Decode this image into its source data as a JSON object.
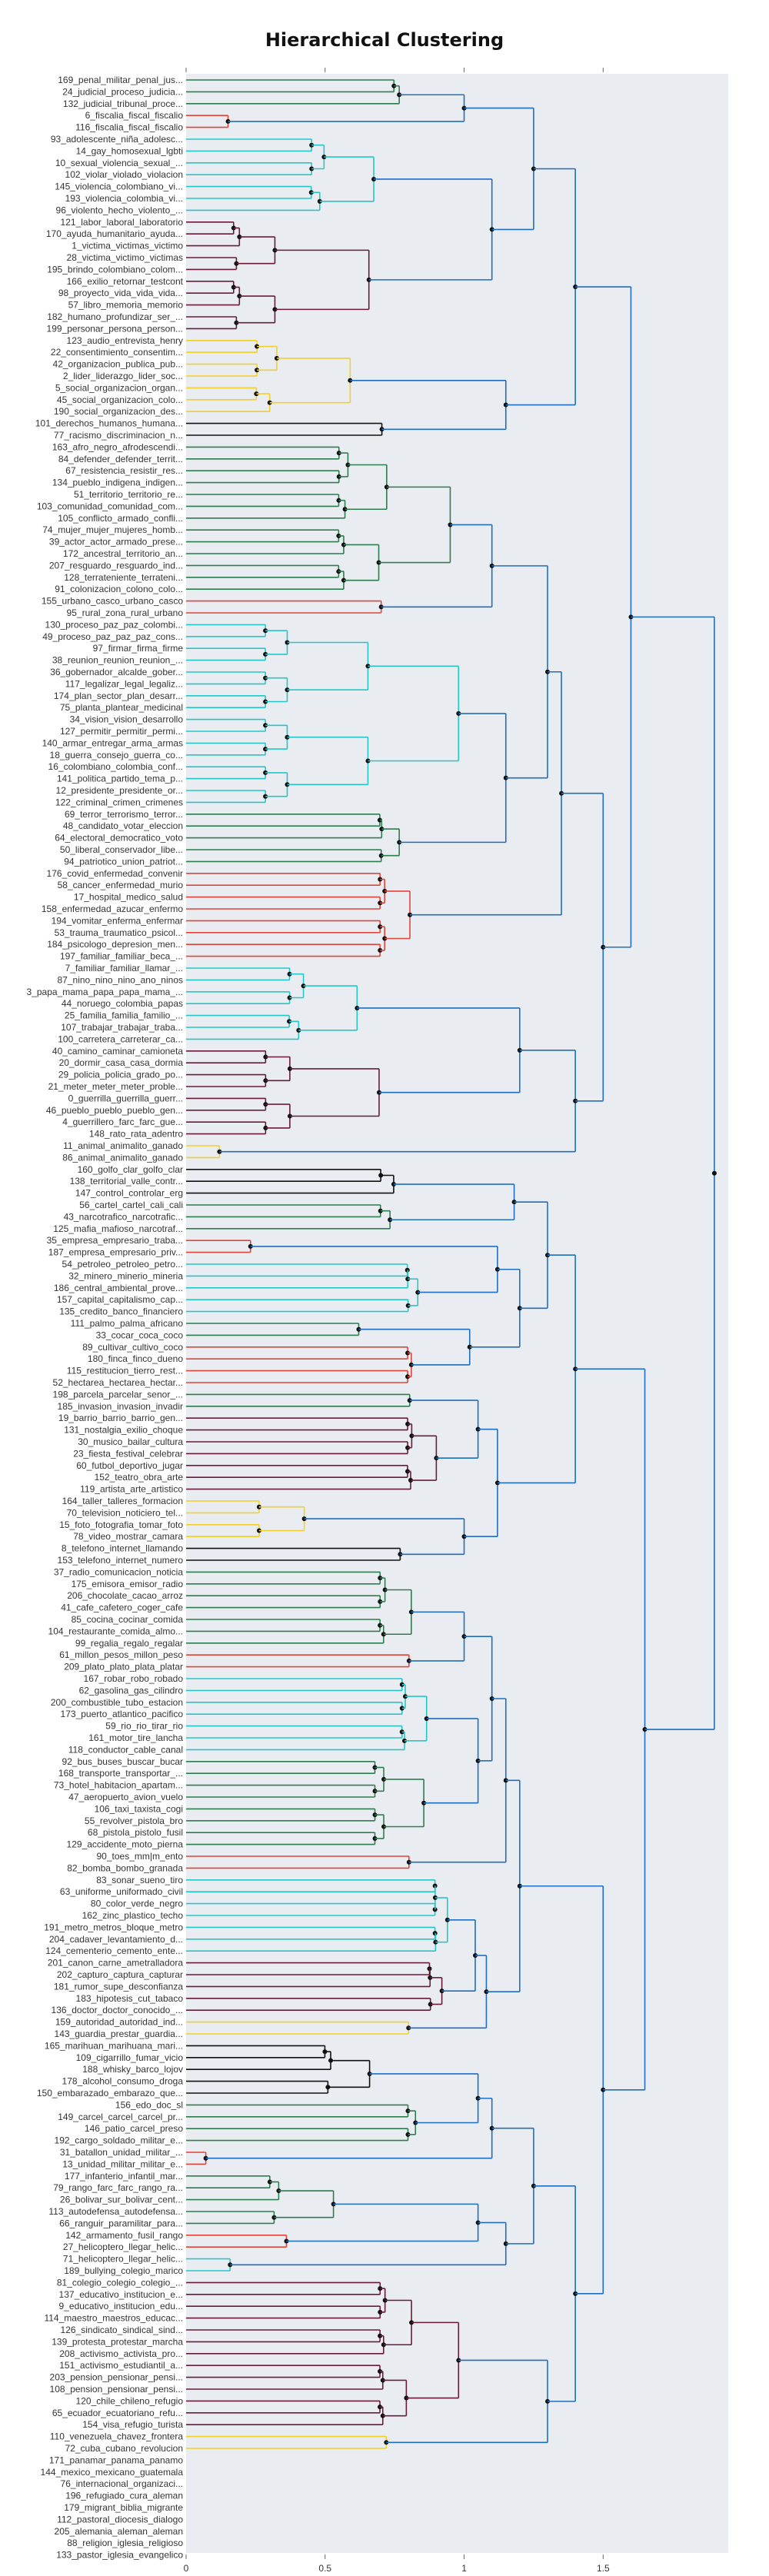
{
  "chart_data": {
    "type": "dendrogram",
    "title": "Hierarchical Clustering",
    "xlabel": "",
    "ylabel": "",
    "orientation": "horizontal",
    "grid": false,
    "xlim": [
      0,
      1.95
    ],
    "x_ticks": [
      0,
      0.5,
      1,
      1.5
    ],
    "x_tick_labels": [
      "0",
      "0.5",
      "1",
      "1.5"
    ],
    "leaves": [
      "169_penal_militar_penal_jus...",
      "24_judicial_proceso_judicia...",
      "132_judicial_tribunal_proce...",
      "6_fiscalia_fiscal_fiscalio",
      "116_fiscalia_fiscal_fiscalio",
      "93_adolescente_niña_adolesc...",
      "14_gay_homosexual_lgbti",
      "10_sexual_violencia_sexual_...",
      "102_violar_violado_violacion",
      "145_violencia_colombiano_vi...",
      "193_violencia_colombia_vi...",
      "96_violento_hecho_violento_...",
      "121_labor_laboral_laboratorio",
      "170_ayuda_humanitario_ayuda...",
      "1_victima_victimas_victimo",
      "28_victima_victimo_victimas",
      "195_brindo_colombiano_colom...",
      "166_exilio_retornar_testcont",
      "98_proyecto_vida_vida_vida...",
      "57_libro_memoria_memorio",
      "182_humano_profundizar_ser_...",
      "199_personar_persona_person...",
      "123_audio_entrevista_henry",
      "22_consentimiento_consentim...",
      "42_organizacion_publica_pub...",
      "2_lider_liderazgo_lider_soc...",
      "5_social_organizacion_organ...",
      "45_social_organizacion_colo...",
      "190_social_organizacion_des...",
      "101_derechos_humanos_humana...",
      "77_racismo_discriminacion_n...",
      "163_afro_negro_afrodescendi...",
      "84_defender_defender_territ...",
      "67_resistencia_resistir_res...",
      "134_pueblo_indigena_indigen...",
      "51_territorio_territorio_re...",
      "103_comunidad_comunidad_com...",
      "105_conflicto_armado_confli...",
      "74_mujer_mujer_mujeres_homb...",
      "39_actor_actor_armado_prese...",
      "172_ancestral_territorio_an...",
      "207_resguardo_resguardo_ind...",
      "128_terrateniente_terrateni...",
      "91_colonizacion_colono_colo...",
      "155_urbano_casco_urbano_casco",
      "95_rural_zona_rural_urbano",
      "130_proceso_paz_paz_colombi...",
      "49_proceso_paz_paz_paz_cons...",
      "97_firmar_firma_firme",
      "38_reunion_reunion_reunion_...",
      "36_gobernador_alcalde_gober...",
      "117_legalizar_legal_legaliz...",
      "174_plan_sector_plan_desarr...",
      "75_planta_plantear_medicinal",
      "34_vision_vision_desarrollo",
      "127_permitir_permitir_permi...",
      "140_armar_entregar_arma_armas",
      "18_guerra_consejo_guerra_co...",
      "16_colombiano_colombia_conf...",
      "141_politica_partido_tema_p...",
      "12_presidente_presidente_or...",
      "122_criminal_crimen_crimenes",
      "69_terror_terrorismo_terror...",
      "48_candidato_votar_eleccion",
      "64_electoral_democratico_voto",
      "50_liberal_conservador_libe...",
      "94_patriotico_union_patriot...",
      "176_covid_enfermedad_convenir",
      "58_cancer_enfermedad_murio",
      "17_hospital_medico_salud",
      "158_enfermedad_azucar_enfermo",
      "194_vomitar_enferma_enfermar",
      "53_trauma_traumatico_psicol...",
      "184_psicologo_depresion_men...",
      "197_familiar_familiar_beca_...",
      "7_familiar_familiar_llamar_...",
      "87_nino_nino_nino_ano_ninos",
      "3_papa_mama_papa_papa_mama_...",
      "44_noruego_colombia_papas",
      "25_familia_familia_familio_...",
      "107_trabajar_trabajar_traba...",
      "100_carretera_carreterar_ca...",
      "40_camino_caminar_camioneta",
      "20_dormir_casa_casa_dormia",
      "29_policia_policia_grado_po...",
      "21_meter_meter_meter_proble...",
      "0_guerrilla_guerrilla_guerr...",
      "46_pueblo_pueblo_pueblo_gen...",
      "4_guerrillero_farc_farc_gue...",
      "148_rato_rata_adentro",
      "11_animal_animalito_ganado",
      "86_animal_animalito_ganado",
      "160_golfo_clar_golfo_clar",
      "138_territorial_valle_contr...",
      "147_control_controlar_erg",
      "56_cartel_cartel_cali_cali",
      "43_narcotrafico_narcotrafic...",
      "125_mafia_mafioso_narcotraf...",
      "35_empresa_empresario_traba...",
      "187_empresa_empresario_priv...",
      "54_petroleo_petroleo_petro...",
      "32_minero_minerio_mineria",
      "186_central_ambiental_prove...",
      "157_capital_capitalismo_cap...",
      "135_credito_banco_financiero",
      "111_palmo_palma_africano",
      "33_cocar_coca_coco",
      "89_cultivar_cultivo_coco",
      "180_finca_finco_dueno",
      "115_restitucion_tierro_rest...",
      "52_hectarea_hectarea_hectar...",
      "198_parcela_parcelar_senor_...",
      "185_invasion_invasion_invadir",
      "19_barrio_barrio_barrio_gen...",
      "131_nostalgia_exilio_choque",
      "30_musico_bailar_cultura",
      "23_fiesta_festival_celebrar",
      "60_futbol_deportivo_jugar",
      "152_teatro_obra_arte",
      "119_artista_arte_artistico",
      "164_taller_talleres_formacion",
      "70_television_noticiero_tel...",
      "15_foto_fotografia_tomar_foto",
      "78_video_mostrar_camara",
      "8_telefono_internet_llamando",
      "153_telefono_internet_numero",
      "37_radio_comunicacion_noticia",
      "175_emisora_emisor_radio",
      "206_chocolate_cacao_arroz",
      "41_cafe_cafetero_coger_cafe",
      "85_cocina_cocinar_comida",
      "104_restaurante_comida_almo...",
      "99_regalia_regalo_regalar",
      "61_millon_pesos_millon_peso",
      "209_plato_plato_plata_platar",
      "167_robar_robo_robado",
      "62_gasolina_gas_cilindro",
      "200_combustible_tubo_estacion",
      "173_puerto_atlantico_pacifico",
      "59_rio_rio_tirar_rio",
      "161_motor_tire_lancha",
      "118_conductor_cable_canal",
      "92_bus_buses_buscar_bucar",
      "168_transporte_transportar_...",
      "73_hotel_habitacion_apartam...",
      "47_aeropuerto_avion_vuelo",
      "106_taxi_taxista_cogi",
      "55_revolver_pistola_bro",
      "68_pistola_pistolo_fusil",
      "129_accidente_moto_pierna",
      "90_toes_mm|m_ento",
      "82_bomba_bombo_granada",
      "83_sonar_sueno_tiro",
      "63_uniforme_uniformado_civil",
      "80_color_verde_negro",
      "162_zinc_plastico_techo",
      "191_metro_metros_bloque_metro",
      "204_cadaver_levantamiento_d...",
      "124_cementerio_cemento_ente...",
      "201_canon_carne_ametralladora",
      "202_capturo_captura_capturar",
      "181_rumor_supe_desconfianza",
      "183_hipotesis_cut_tabaco",
      "136_doctor_doctor_conocido_...",
      "159_autoridad_autoridad_ind...",
      "143_guardia_prestar_guardia...",
      "165_marihuan_marihuana_mari...",
      "109_cigarrillo_fumar_vicio",
      "188_whisky_barco_lojov",
      "178_alcohol_consumo_droga",
      "150_embarazado_embarazo_que...",
      "156_edo_doc_sl",
      "149_carcel_carcel_carcel_pr...",
      "146_patio_carcel_preso",
      "192_cargo_soldado_militar_e...",
      "31_batallon_unidad_militar_...",
      "13_unidad_militar_militar_e...",
      "177_infanterio_infantil_mar...",
      "79_rango_farc_farc_rango_ra...",
      "26_bolivar_sur_bolivar_cent...",
      "113_autodefensa_autodefensa...",
      "66_ranguir_paramilitar_para...",
      "142_armamento_fusil_rango",
      "27_helicoptero_llegar_helic...",
      "71_helicoptero_llegar_helic...",
      "189_bullying_colegio_marico",
      "81_colegio_colegio_colegio_...",
      "137_educativo_institucion_e...",
      "9_educativo_institucion_edu...",
      "114_maestro_maestros_educac...",
      "126_sindicato_sindical_sind...",
      "139_protesta_protestar_marcha",
      "208_activismo_activista_pro...",
      "151_activismo_estudiantil_a...",
      "203_pension_pensionar_pensi...",
      "108_pension_pensionar_pensi...",
      "120_chile_chileno_refugio",
      "65_ecuador_ecuatoriano_refu...",
      "154_visa_refugio_turista",
      "110_venezuela_chavez_frontera",
      "72_cuba_cubano_revolucion",
      "171_panamar_panama_panamo",
      "144_mexico_mexicano_guatemala",
      "76_internacional_organizaci...",
      "196_refugiado_cura_aleman",
      "179_migrant_biblia_migrante",
      "112_pastoral_diocesis_dialogo",
      "205_alemania_aleman_aleman",
      "88_religion_iglesia_religioso",
      "133_pastor_iglesia_evangelico"
    ],
    "colors": {
      "blue": "#1f6fc0",
      "green": "#2e7d4f",
      "red": "#e0453a",
      "cyan": "#26c6c6",
      "maroon": "#6a1b3a",
      "black": "#111111",
      "yellow": "#f2d02b",
      "background": "#e9ecf1"
    }
  }
}
